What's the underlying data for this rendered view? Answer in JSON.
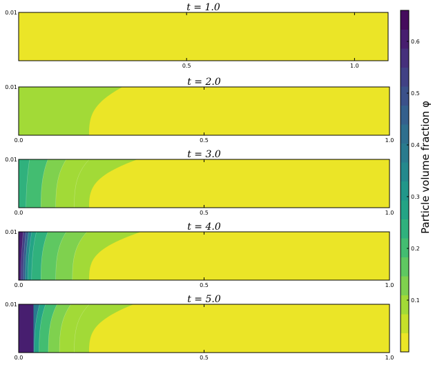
{
  "chart_data": {
    "type": "heatmap",
    "colormap": "viridis_r",
    "panels": [
      {
        "title": "t = 1.0",
        "xlim": [
          0,
          1.1
        ],
        "ylim": [
          0,
          0.01
        ],
        "xticks": [
          {
            "v": 0.5,
            "label": "0.5"
          },
          {
            "v": 1.0,
            "label": "1.0"
          }
        ],
        "yticks": [
          {
            "v": 0.01,
            "label": "0.01"
          }
        ],
        "uniform": 0.02
      },
      {
        "title": "t = 2.0",
        "xlim": [
          0,
          1.0
        ],
        "ylim": [
          0,
          0.01
        ],
        "xticks": [
          {
            "v": 0.0,
            "label": "0.0"
          },
          {
            "v": 0.5,
            "label": "0.5"
          },
          {
            "v": 1.0,
            "label": "1.0"
          }
        ],
        "yticks": [
          {
            "v": 0.01,
            "label": "0.01"
          }
        ],
        "front": {
          "x0": 0.19,
          "bulge": 0.09
        },
        "bands": [
          0.075
        ],
        "plug": null
      },
      {
        "title": "t = 3.0",
        "xlim": [
          0,
          1.0
        ],
        "ylim": [
          0,
          0.01
        ],
        "xticks": [
          {
            "v": 0.0,
            "label": "0.0"
          },
          {
            "v": 0.5,
            "label": "0.5"
          },
          {
            "v": 1.0,
            "label": "1.0"
          }
        ],
        "yticks": [
          {
            "v": 0.01,
            "label": "0.01"
          }
        ],
        "front": {
          "x0": 0.19,
          "bulge": 0.13
        },
        "bands": [
          0.24,
          0.19,
          0.14,
          0.09
        ],
        "band_x": [
          0.02,
          0.06,
          0.1,
          0.15
        ],
        "plug": null
      },
      {
        "title": "t = 4.0",
        "xlim": [
          0,
          1.0
        ],
        "ylim": [
          0,
          0.01
        ],
        "xticks": [
          {
            "v": 0.0,
            "label": "0.0"
          },
          {
            "v": 0.5,
            "label": "0.5"
          },
          {
            "v": 1.0,
            "label": "1.0"
          }
        ],
        "yticks": [
          {
            "v": 0.01,
            "label": "0.01"
          }
        ],
        "front": {
          "x0": 0.19,
          "bulge": 0.14
        },
        "bands": [
          0.6,
          0.52,
          0.44,
          0.36,
          0.29,
          0.22,
          0.16,
          0.11
        ],
        "band_x": [
          0.006,
          0.012,
          0.018,
          0.025,
          0.035,
          0.06,
          0.1,
          0.145
        ],
        "plug": null
      },
      {
        "title": "t = 5.0",
        "xlim": [
          0,
          1.0
        ],
        "ylim": [
          0,
          0.01
        ],
        "xticks": [
          {
            "v": 0.0,
            "label": "0.0"
          },
          {
            "v": 0.5,
            "label": "0.5"
          },
          {
            "v": 1.0,
            "label": "1.0"
          }
        ],
        "yticks": [
          {
            "v": 0.01,
            "label": "0.01"
          }
        ],
        "front": {
          "x0": 0.19,
          "bulge": 0.12
        },
        "bands": [
          0.38,
          0.27,
          0.19,
          0.13,
          0.09
        ],
        "band_x": [
          0.042,
          0.055,
          0.08,
          0.11,
          0.15
        ],
        "plug": {
          "x1": 0.04,
          "value": 0.62
        }
      }
    ],
    "colorbar": {
      "label": "Particle volume fraction φ",
      "range": [
        0.0,
        0.66
      ],
      "levels": 18,
      "ticks": [
        {
          "v": 0.1,
          "label": "0.1"
        },
        {
          "v": 0.2,
          "label": "0.2"
        },
        {
          "v": 0.3,
          "label": "0.3"
        },
        {
          "v": 0.4,
          "label": "0.4"
        },
        {
          "v": 0.5,
          "label": "0.5"
        },
        {
          "v": 0.6,
          "label": "0.6"
        }
      ]
    }
  }
}
